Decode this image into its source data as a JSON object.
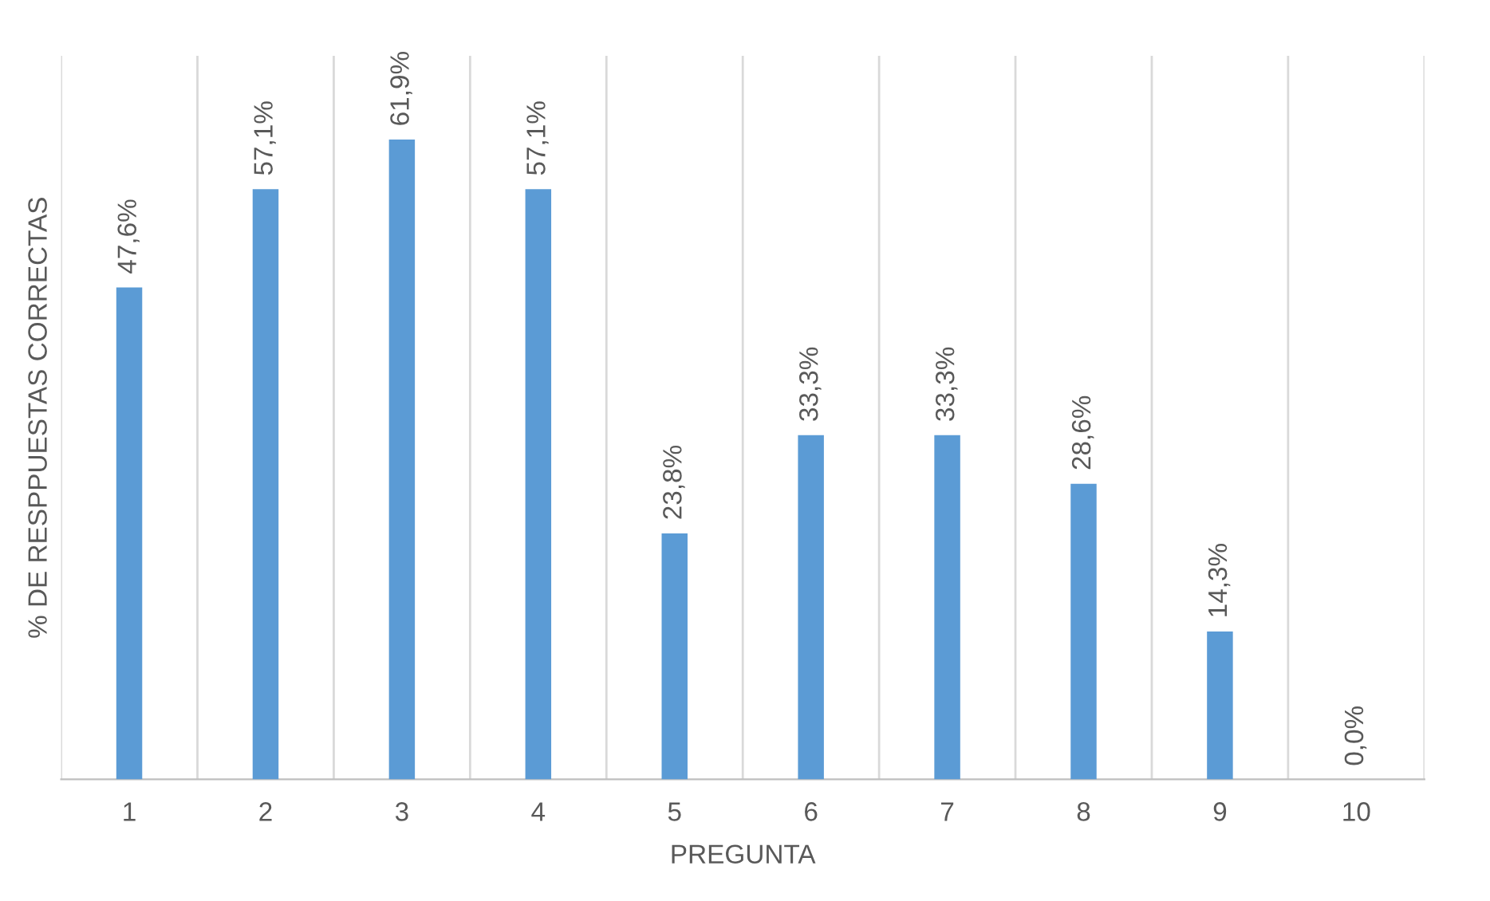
{
  "chart_data": {
    "type": "bar",
    "xlabel": "PREGUNTA",
    "ylabel": "% DE RESPPUESTAS CORRECTAS",
    "categories": [
      "1",
      "2",
      "3",
      "4",
      "5",
      "6",
      "7",
      "8",
      "9",
      "10"
    ],
    "values": [
      47.6,
      57.1,
      61.9,
      57.1,
      23.8,
      33.3,
      33.3,
      28.6,
      14.3,
      0.0
    ],
    "value_labels": [
      "47,6%",
      "57,1%",
      "61,9%",
      "57,1%",
      "23,8%",
      "33,3%",
      "33,3%",
      "28,6%",
      "14,3%",
      "0,0%"
    ],
    "color": "#5b9bd5",
    "ylim": [
      0,
      70
    ],
    "grid": "x",
    "tick_labels": "x",
    "legend": false
  }
}
